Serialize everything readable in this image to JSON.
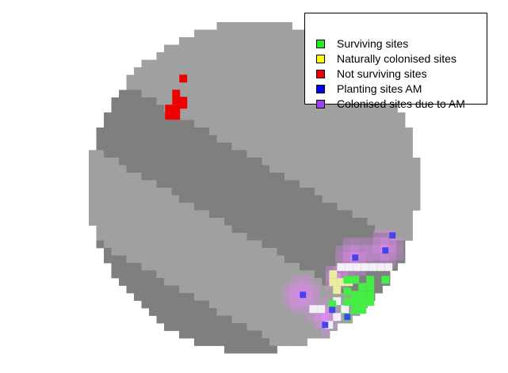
{
  "legend": {
    "items": [
      {
        "label": "Surviving sites",
        "color": "#22ee22"
      },
      {
        "label": "Naturally colonised sites",
        "color": "#ffff00"
      },
      {
        "label": "Not surviving sites",
        "color": "#ee0000"
      },
      {
        "label": "Planting sites AM",
        "color": "#0000ee"
      },
      {
        "label": "Colonised sites due to AM",
        "color": "#a040f0"
      }
    ]
  },
  "colors": {
    "terrain_light": "#a0a0a0",
    "terrain_dark": "#7f7f7f",
    "surviving": "#44ee44",
    "not_surviving": "#ee0000",
    "planting": "#4444ee",
    "colonised_am": "#dd88ee",
    "naturally_colonised": "#e8f0a0",
    "background": "#ffffff"
  }
}
